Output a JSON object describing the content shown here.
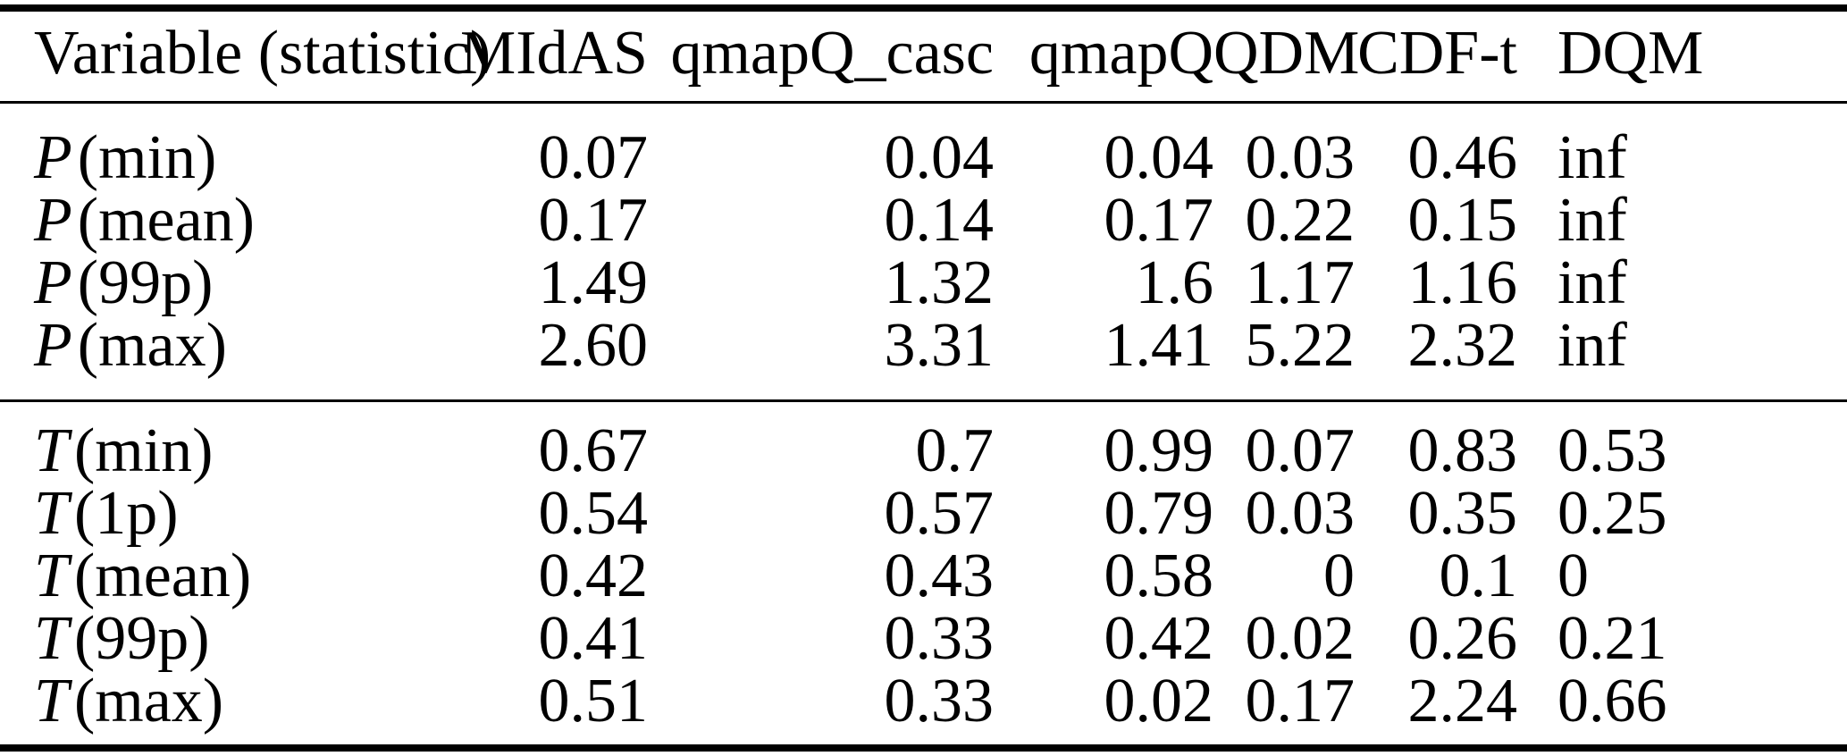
{
  "table": {
    "columns": [
      {
        "label": "Variable (statistic)",
        "align": "left"
      },
      {
        "label": "MIdAS",
        "align": "right"
      },
      {
        "label": "qmapQ_casc",
        "align": "right"
      },
      {
        "label": "qmapQ",
        "align": "right"
      },
      {
        "label": "QDM",
        "align": "right"
      },
      {
        "label": "CDF-t",
        "align": "right"
      },
      {
        "label": "DQM",
        "align": "left"
      }
    ],
    "sections": [
      {
        "rows": [
          {
            "variable": "P",
            "statistic": "(min)",
            "values": [
              "0.07",
              "0.04",
              "0.04",
              "0.03",
              "0.46",
              "inf"
            ]
          },
          {
            "variable": "P",
            "statistic": "(mean)",
            "values": [
              "0.17",
              "0.14",
              "0.17",
              "0.22",
              "0.15",
              "inf"
            ]
          },
          {
            "variable": "P",
            "statistic": "(99p)",
            "values": [
              "1.49",
              "1.32",
              "1.6",
              "1.17",
              "1.16",
              "inf"
            ]
          },
          {
            "variable": "P",
            "statistic": "(max)",
            "values": [
              "2.60",
              "3.31",
              "1.41",
              "5.22",
              "2.32",
              "inf"
            ]
          }
        ]
      },
      {
        "rows": [
          {
            "variable": "T",
            "statistic": "(min)",
            "values": [
              "0.67",
              "0.7",
              "0.99",
              "0.07",
              "0.83",
              "0.53"
            ]
          },
          {
            "variable": "T",
            "statistic": "(1p)",
            "values": [
              "0.54",
              "0.57",
              "0.79",
              "0.03",
              "0.35",
              "0.25"
            ]
          },
          {
            "variable": "T",
            "statistic": "(mean)",
            "values": [
              "0.42",
              "0.43",
              "0.58",
              "0",
              "0.1",
              "0"
            ]
          },
          {
            "variable": "T",
            "statistic": "(99p)",
            "values": [
              "0.41",
              "0.33",
              "0.42",
              "0.02",
              "0.26",
              "0.21"
            ]
          },
          {
            "variable": "T",
            "statistic": "(max)",
            "values": [
              "0.51",
              "0.33",
              "0.02",
              "0.17",
              "2.24",
              "0.66"
            ]
          }
        ]
      }
    ],
    "colors": {
      "text": "#000000",
      "background": "#ffffff",
      "rule": "#000000"
    }
  }
}
